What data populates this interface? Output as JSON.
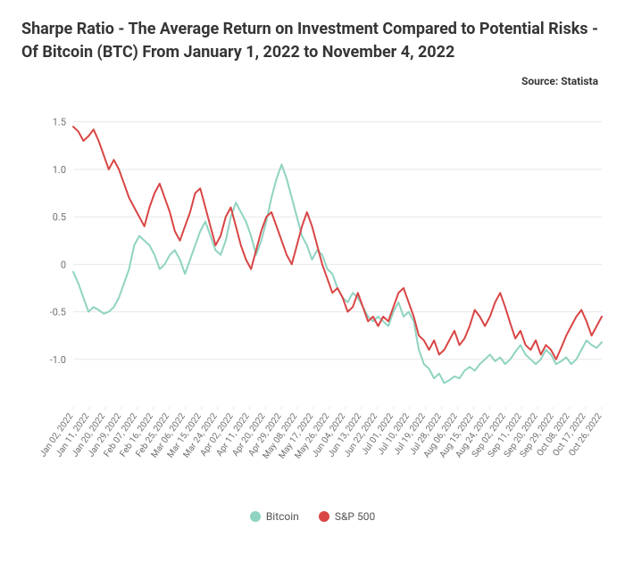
{
  "title": "Sharpe Ratio - The Average Return on Investment Compared to Potential Risks - Of Bitcoin (BTC) From January 1, 2022 to November 4, 2022",
  "source": "Source: Statista",
  "chart": {
    "type": "line",
    "background_color": "#ffffff",
    "grid_color": "#e8e8e8",
    "axis_text_color": "#707070",
    "title_fontsize": 18,
    "label_fontsize": 11,
    "xlabel_fontsize": 10,
    "ylim": [
      -1.5,
      1.6
    ],
    "yticks": [
      -1.0,
      -0.5,
      0,
      0.5,
      1.0,
      1.5
    ],
    "xlabels": [
      "Jan 02, 2022",
      "Jan 11, 2022",
      "Jan 20, 2022",
      "Jan 29, 2022",
      "Feb 07, 2022",
      "Feb 16, 2022",
      "Feb 25, 2022",
      "Mar 06, 2022",
      "Mar 15, 2022",
      "Mar 24, 2022",
      "Apr 02, 2022",
      "Apr 11, 2022",
      "Apr 20, 2022",
      "Apr 29, 2022",
      "May 08, 2022",
      "May 17, 2022",
      "May 26, 2022",
      "Jun 04, 2022",
      "Jun 13, 2022",
      "Jun 22, 2022",
      "Jul 01, 2022",
      "Jul 10, 2022",
      "Jul 19, 2022",
      "Jul 28, 2022",
      "Aug 06, 2022",
      "Aug 15, 2022",
      "Aug 24, 2022",
      "Sep 02, 2022",
      "Sep 11, 2022",
      "Sep 20, 2022",
      "Sep 29, 2022",
      "Oct 08, 2022",
      "Oct 17, 2022",
      "Oct 26, 2022"
    ],
    "line_width": 2,
    "series": [
      {
        "name": "Bitcoin",
        "color": "#8fd3c1",
        "values": [
          -0.08,
          -0.2,
          -0.35,
          -0.5,
          -0.45,
          -0.48,
          -0.52,
          -0.5,
          -0.45,
          -0.35,
          -0.2,
          -0.05,
          0.2,
          0.3,
          0.25,
          0.2,
          0.1,
          -0.05,
          0.0,
          0.1,
          0.15,
          0.05,
          -0.1,
          0.05,
          0.2,
          0.35,
          0.45,
          0.3,
          0.15,
          0.1,
          0.25,
          0.5,
          0.65,
          0.55,
          0.45,
          0.3,
          0.1,
          0.25,
          0.45,
          0.7,
          0.9,
          1.05,
          0.9,
          0.7,
          0.5,
          0.3,
          0.2,
          0.05,
          0.15,
          0.1,
          -0.05,
          -0.1,
          -0.25,
          -0.35,
          -0.4,
          -0.3,
          -0.35,
          -0.45,
          -0.55,
          -0.6,
          -0.55,
          -0.6,
          -0.65,
          -0.5,
          -0.4,
          -0.55,
          -0.5,
          -0.6,
          -0.9,
          -1.05,
          -1.1,
          -1.2,
          -1.15,
          -1.25,
          -1.22,
          -1.18,
          -1.2,
          -1.12,
          -1.08,
          -1.12,
          -1.05,
          -1.0,
          -0.95,
          -1.02,
          -0.98,
          -1.05,
          -1.0,
          -0.92,
          -0.85,
          -0.95,
          -1.0,
          -1.05,
          -1.0,
          -0.9,
          -0.95,
          -1.05,
          -1.02,
          -0.98,
          -1.05,
          -1.0,
          -0.9,
          -0.8,
          -0.85,
          -0.88,
          -0.82
        ]
      },
      {
        "name": "S&P 500",
        "color": "#d94545",
        "values": [
          1.45,
          1.4,
          1.3,
          1.35,
          1.42,
          1.3,
          1.15,
          1.0,
          1.1,
          1.0,
          0.85,
          0.7,
          0.6,
          0.5,
          0.4,
          0.6,
          0.75,
          0.85,
          0.7,
          0.55,
          0.35,
          0.25,
          0.4,
          0.55,
          0.75,
          0.8,
          0.6,
          0.4,
          0.2,
          0.3,
          0.5,
          0.6,
          0.4,
          0.2,
          0.05,
          -0.05,
          0.15,
          0.35,
          0.5,
          0.55,
          0.4,
          0.25,
          0.1,
          0.0,
          0.2,
          0.4,
          0.55,
          0.4,
          0.2,
          0.0,
          -0.15,
          -0.3,
          -0.25,
          -0.35,
          -0.5,
          -0.45,
          -0.3,
          -0.45,
          -0.6,
          -0.55,
          -0.65,
          -0.55,
          -0.6,
          -0.45,
          -0.3,
          -0.25,
          -0.4,
          -0.55,
          -0.75,
          -0.8,
          -0.9,
          -0.8,
          -0.95,
          -0.9,
          -0.8,
          -0.7,
          -0.85,
          -0.78,
          -0.65,
          -0.48,
          -0.55,
          -0.65,
          -0.55,
          -0.4,
          -0.3,
          -0.45,
          -0.62,
          -0.78,
          -0.7,
          -0.85,
          -0.9,
          -0.8,
          -0.95,
          -0.85,
          -0.9,
          -1.0,
          -0.88,
          -0.75,
          -0.65,
          -0.55,
          -0.48,
          -0.6,
          -0.75,
          -0.65,
          -0.55
        ]
      }
    ],
    "legend_position": "bottom"
  }
}
